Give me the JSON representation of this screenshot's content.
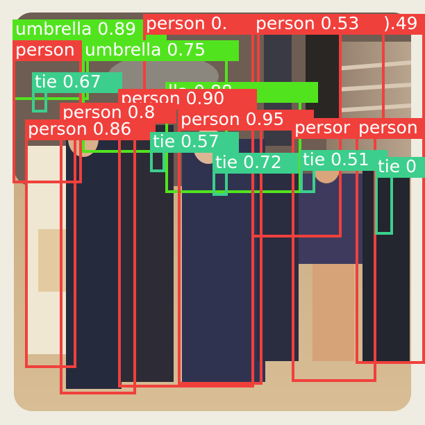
{
  "colors": {
    "person": "#f0403c",
    "umbrella": "#52e31f",
    "tie": "#3cce8c",
    "label_text": "#ffffff",
    "frame": "#efece1"
  },
  "detections": [
    {
      "id": "umbrella-1",
      "cls": "umbrella",
      "label": "umbrella 0.89"
    },
    {
      "id": "person-a",
      "cls": "person",
      "label": "person 0."
    },
    {
      "id": "person-b",
      "cls": "person",
      "label": "person 0.53"
    },
    {
      "id": "person-c",
      "cls": "person",
      "label": ").49"
    },
    {
      "id": "person-d",
      "cls": "person",
      "label": "person"
    },
    {
      "id": "umbrella-2",
      "cls": "umbrella",
      "label": "umbrella 0.75"
    },
    {
      "id": "tie-1",
      "cls": "tie",
      "label": "tie 0.67"
    },
    {
      "id": "umbrella-3",
      "cls": "umbrella",
      "label": "lla 0.88"
    },
    {
      "id": "person-e",
      "cls": "person",
      "label": "person 0.90"
    },
    {
      "id": "person-f",
      "cls": "person",
      "label": "person 0.8"
    },
    {
      "id": "person-g",
      "cls": "person",
      "label": "person 0.95"
    },
    {
      "id": "person-h",
      "cls": "person",
      "label": "person 0.86"
    },
    {
      "id": "tie-2",
      "cls": "tie",
      "label": "tie 0.57"
    },
    {
      "id": "person-i",
      "cls": "person",
      "label": "persor"
    },
    {
      "id": "person-j",
      "cls": "person",
      "label": "person"
    },
    {
      "id": "tie-3",
      "cls": "tie",
      "label": "tie 0.72"
    },
    {
      "id": "tie-4",
      "cls": "tie",
      "label": "tie 0.51"
    },
    {
      "id": "tie-5",
      "cls": "tie",
      "label": "tie 0"
    }
  ]
}
